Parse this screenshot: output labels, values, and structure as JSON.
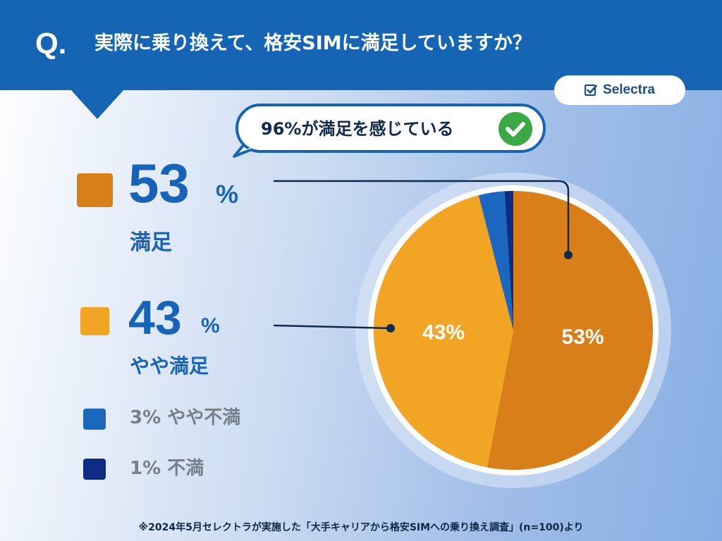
{
  "header": {
    "q_mark": "Q.",
    "title": "実際に乗り換えて、格安SIMに満足していますか？"
  },
  "brand": {
    "name": "Selectra",
    "icon": "check-box-icon"
  },
  "callout": {
    "text": "96%が満足を感じている",
    "icon": "check-circle-icon"
  },
  "colors": {
    "header": "#1565b4",
    "satisfied": "#d97f19",
    "somewhat_satisfied": "#f2a425",
    "somewhat_dissatisfied": "#1b67be",
    "dissatisfied": "#0d2c86",
    "check_green": "#3aa845"
  },
  "legend": {
    "satisfied": {
      "number": "53",
      "percent_sign": "%",
      "label": "満足"
    },
    "somewhat_satisfied": {
      "number": "43",
      "percent_sign": "%",
      "label": "やや満足"
    },
    "somewhat_dissatisfied": {
      "label": "3% やや不満"
    },
    "dissatisfied": {
      "label": "1% 不満"
    }
  },
  "chart_data": {
    "type": "pie",
    "categories": [
      "満足",
      "やや満足",
      "やや不満",
      "不満"
    ],
    "values": [
      53,
      43,
      3,
      1
    ],
    "colors": [
      "#d97f19",
      "#f2a425",
      "#1b67be",
      "#0d2c86"
    ],
    "slice_labels": [
      "53%",
      "43%",
      "",
      ""
    ],
    "start": "top",
    "direction": "clockwise"
  },
  "footer": {
    "note": "※2024年5月セレクトラが実施した「大手キャリアから格安SIMへの乗り換え調査」(n=100)より"
  }
}
